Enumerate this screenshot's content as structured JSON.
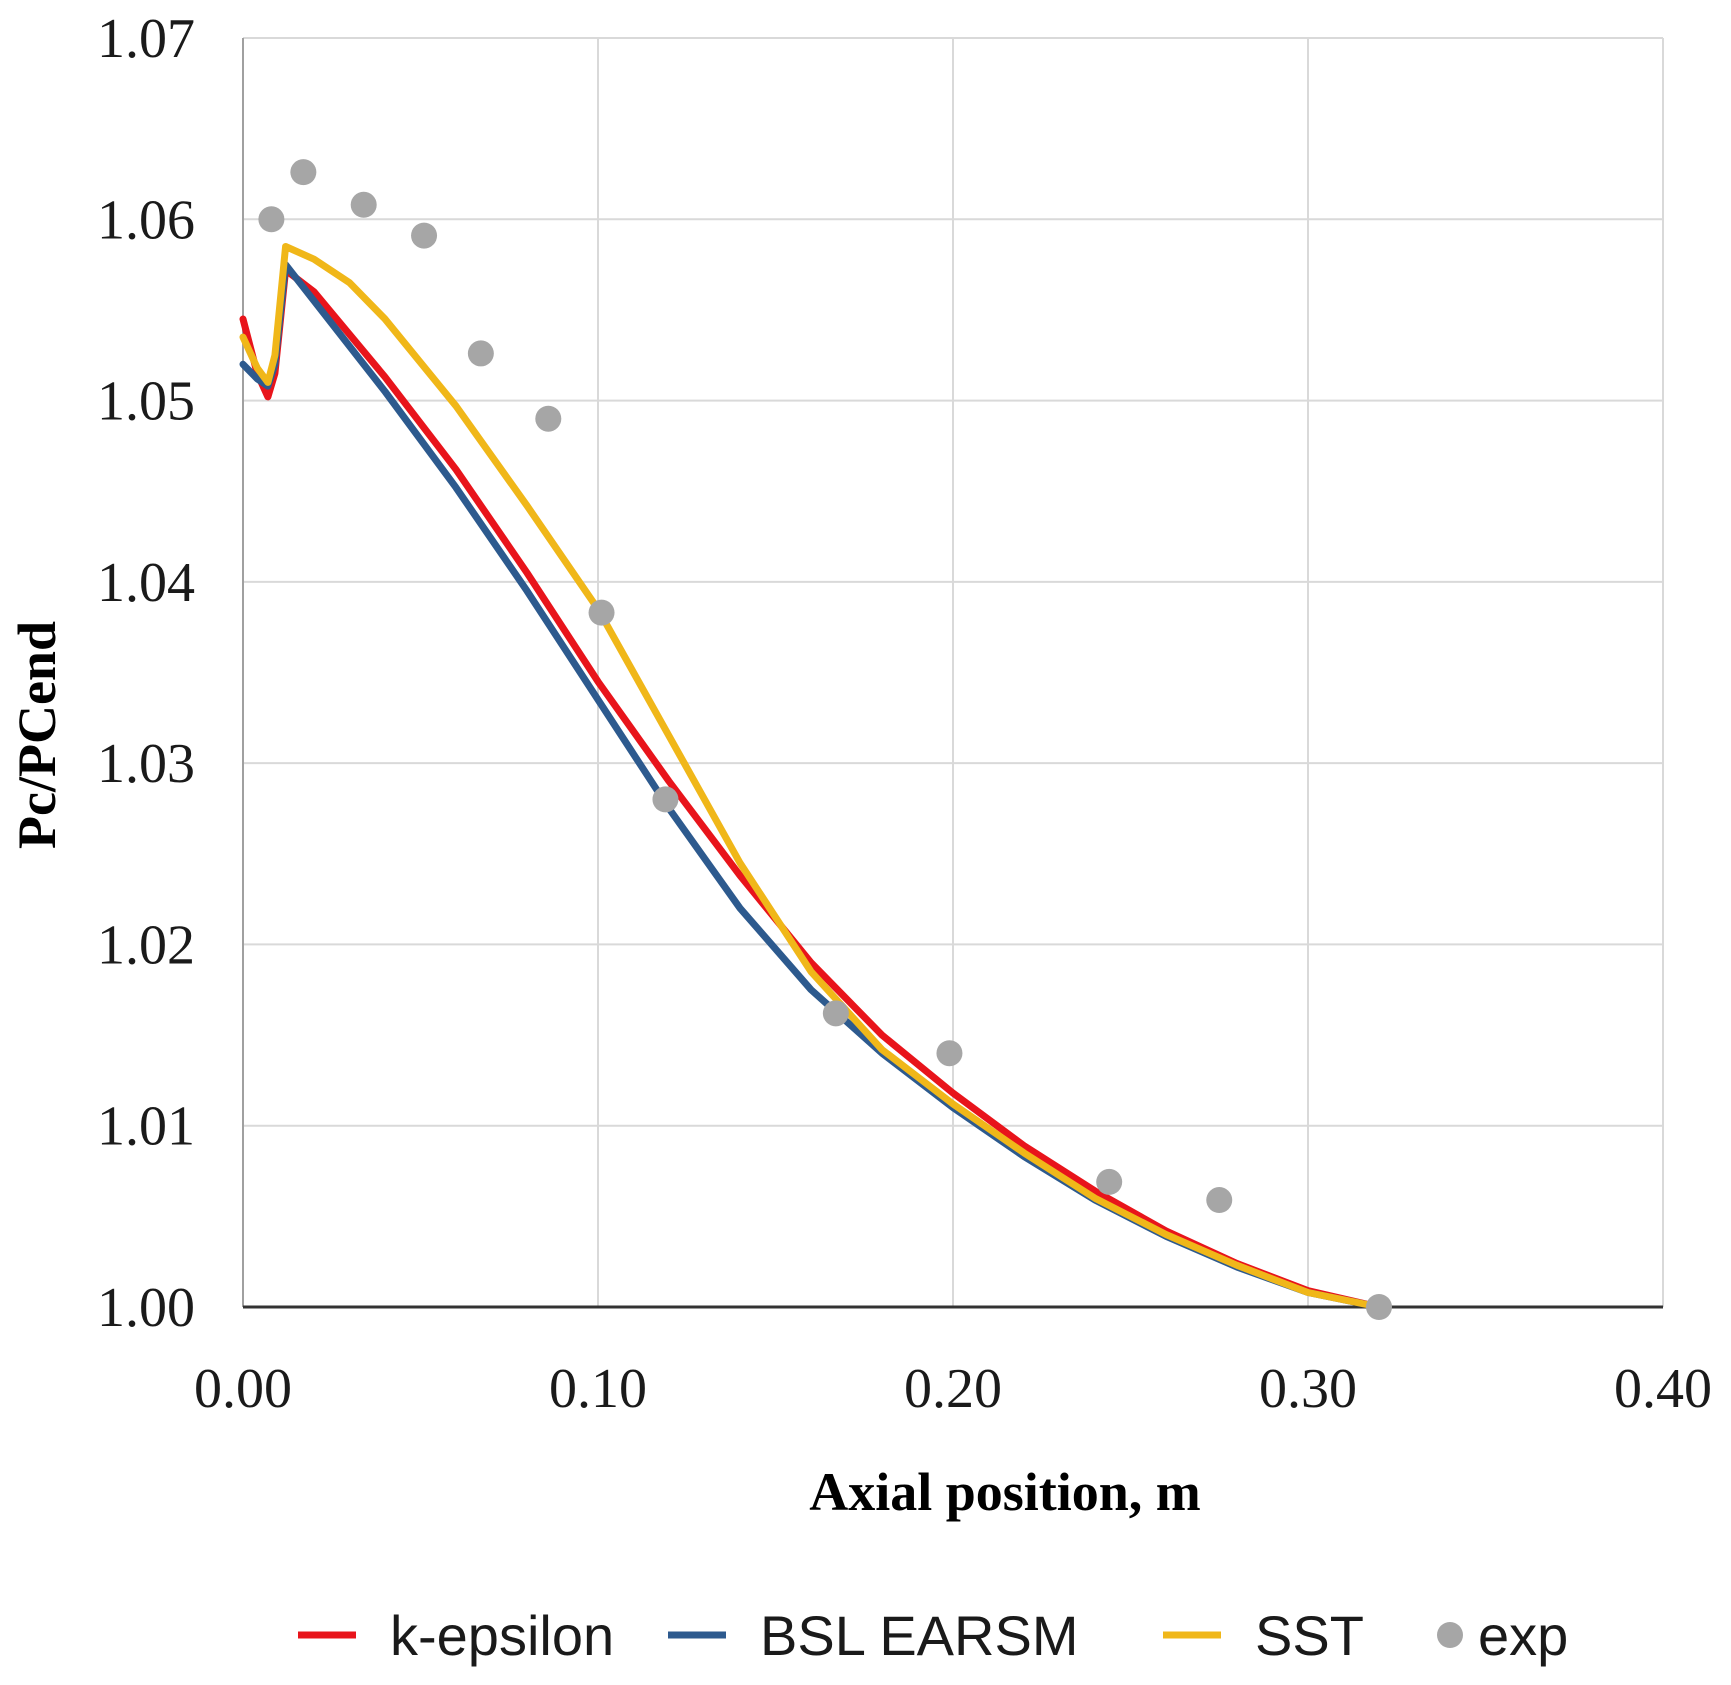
{
  "chart_data": {
    "type": "line",
    "title": "",
    "xlabel": "Axial position, m",
    "ylabel": "Pc/PCend",
    "xlim": [
      0.0,
      0.4
    ],
    "ylim": [
      1.0,
      1.07
    ],
    "x_ticks": [
      "0.00",
      "0.10",
      "0.20",
      "0.30",
      "0.40"
    ],
    "y_ticks": [
      "1.00",
      "1.01",
      "1.02",
      "1.03",
      "1.04",
      "1.05",
      "1.06",
      "1.07"
    ],
    "grid": true,
    "legend_position": "bottom",
    "series": [
      {
        "name": "k-epsilon",
        "color": "#e8141b",
        "style": "line",
        "x": [
          0.0,
          0.004,
          0.007,
          0.009,
          0.012,
          0.02,
          0.04,
          0.06,
          0.08,
          0.1,
          0.12,
          0.14,
          0.16,
          0.18,
          0.2,
          0.22,
          0.24,
          0.26,
          0.28,
          0.3,
          0.32
        ],
        "y": [
          1.0545,
          1.0515,
          1.0502,
          1.0515,
          1.0572,
          1.056,
          1.0513,
          1.0462,
          1.0405,
          1.0345,
          1.029,
          1.0238,
          1.019,
          1.015,
          1.0118,
          1.0089,
          1.0064,
          1.0042,
          1.0024,
          1.0009,
          1.0
        ]
      },
      {
        "name": "BSL EARSM",
        "color": "#2d5a8e",
        "style": "line",
        "x": [
          0.0,
          0.004,
          0.007,
          0.009,
          0.012,
          0.02,
          0.04,
          0.06,
          0.08,
          0.1,
          0.12,
          0.14,
          0.16,
          0.18,
          0.2,
          0.22,
          0.24,
          0.26,
          0.28,
          0.3,
          0.32
        ],
        "y": [
          1.052,
          1.0512,
          1.0508,
          1.052,
          1.0575,
          1.0555,
          1.0505,
          1.0452,
          1.0395,
          1.0335,
          1.0275,
          1.022,
          1.0175,
          1.014,
          1.011,
          1.0083,
          1.0059,
          1.0039,
          1.0022,
          1.0008,
          1.0
        ]
      },
      {
        "name": "SST",
        "color": "#f0b719",
        "style": "line",
        "x": [
          0.0,
          0.004,
          0.007,
          0.009,
          0.012,
          0.02,
          0.03,
          0.04,
          0.06,
          0.08,
          0.1,
          0.12,
          0.14,
          0.16,
          0.18,
          0.2,
          0.22,
          0.24,
          0.26,
          0.28,
          0.3,
          0.32
        ],
        "y": [
          1.0535,
          1.0518,
          1.051,
          1.0525,
          1.0585,
          1.0578,
          1.0565,
          1.0545,
          1.0497,
          1.0442,
          1.0385,
          1.0315,
          1.0245,
          1.0185,
          1.0142,
          1.0112,
          1.0085,
          1.006,
          1.004,
          1.0023,
          1.0008,
          1.0
        ]
      },
      {
        "name": "exp",
        "color": "#a6a6a6",
        "style": "scatter",
        "x": [
          0.008,
          0.017,
          0.034,
          0.051,
          0.067,
          0.086,
          0.101,
          0.119,
          0.167,
          0.199,
          0.244,
          0.275,
          0.32
        ],
        "y": [
          1.06,
          1.0626,
          1.0608,
          1.0591,
          1.0526,
          1.049,
          1.0383,
          1.028,
          1.0162,
          1.014,
          1.0069,
          1.0059,
          1.0
        ]
      }
    ]
  }
}
